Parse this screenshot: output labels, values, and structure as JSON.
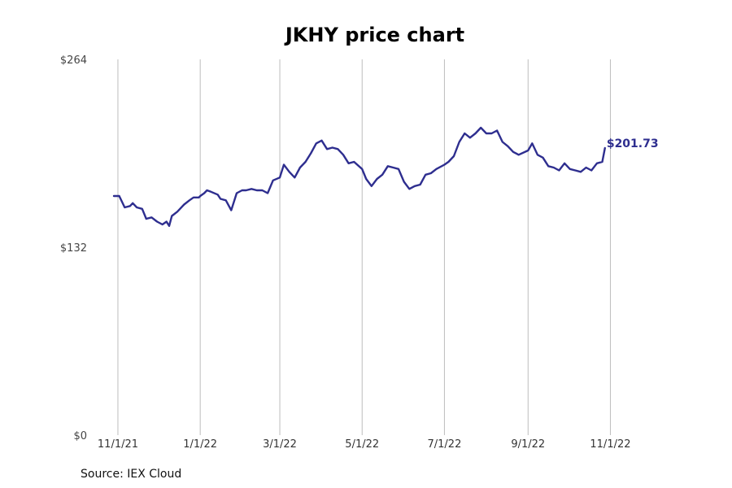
{
  "chart_data": {
    "type": "line",
    "title": "JKHY price chart",
    "source": "Source: IEX Cloud",
    "xlabel": "",
    "ylabel": "",
    "y_ticks": [
      "$264",
      "$132",
      "$0"
    ],
    "y_tick_values": [
      264,
      132,
      0
    ],
    "ylim": [
      0,
      264
    ],
    "x_ticks": [
      "11/1/21",
      "1/1/22",
      "3/1/22",
      "5/1/22",
      "7/1/22",
      "9/1/22",
      "11/1/22"
    ],
    "x_tick_dates": [
      "2021-11-01",
      "2022-01-01",
      "2022-03-01",
      "2022-05-01",
      "2022-07-01",
      "2022-09-01",
      "2022-11-01"
    ],
    "xlim": [
      "2021-10-29",
      "2022-12-31"
    ],
    "grid": "vertical",
    "color": "#2e2e8f",
    "last_value_label": "$201.73",
    "series": [
      {
        "x": [
          "2021-10-29",
          "2021-11-02",
          "2021-11-06",
          "2021-11-10",
          "2021-11-12",
          "2021-11-15",
          "2021-11-19",
          "2021-11-22",
          "2021-11-26",
          "2021-11-30",
          "2021-12-04",
          "2021-12-07",
          "2021-12-09",
          "2021-12-11",
          "2021-12-15",
          "2021-12-20",
          "2021-12-24",
          "2021-12-27",
          "2021-12-31",
          "2022-01-01",
          "2022-01-04",
          "2022-01-06",
          "2022-01-09",
          "2022-01-14",
          "2022-01-16",
          "2022-01-20",
          "2022-01-24",
          "2022-01-28",
          "2022-02-01",
          "2022-02-04",
          "2022-02-08",
          "2022-02-12",
          "2022-02-16",
          "2022-02-20",
          "2022-02-24",
          "2022-03-01",
          "2022-03-04",
          "2022-03-08",
          "2022-03-12",
          "2022-03-16",
          "2022-03-20",
          "2022-03-24",
          "2022-03-28",
          "2022-04-01",
          "2022-04-05",
          "2022-04-09",
          "2022-04-13",
          "2022-04-17",
          "2022-04-21",
          "2022-04-25",
          "2022-05-01",
          "2022-05-04",
          "2022-05-08",
          "2022-05-12",
          "2022-05-16",
          "2022-05-20",
          "2022-05-24",
          "2022-05-28",
          "2022-06-01",
          "2022-06-05",
          "2022-06-09",
          "2022-06-13",
          "2022-06-17",
          "2022-06-21",
          "2022-06-25",
          "2022-07-01",
          "2022-07-04",
          "2022-07-08",
          "2022-07-12",
          "2022-07-16",
          "2022-07-20",
          "2022-07-24",
          "2022-07-28",
          "2022-08-01",
          "2022-08-05",
          "2022-08-09",
          "2022-08-13",
          "2022-08-17",
          "2022-08-21",
          "2022-08-25",
          "2022-09-01",
          "2022-09-04",
          "2022-09-08",
          "2022-09-12",
          "2022-09-16",
          "2022-09-20",
          "2022-09-24",
          "2022-09-28",
          "2022-10-02",
          "2022-10-06",
          "2022-10-10",
          "2022-10-14",
          "2022-10-18",
          "2022-10-22",
          "2022-10-26",
          "2022-10-28"
        ],
        "y": [
          168,
          168,
          160,
          161,
          163,
          160,
          159,
          152,
          153,
          150,
          148,
          150,
          147,
          154,
          157,
          162,
          165,
          167,
          167,
          168,
          170,
          172,
          171,
          169,
          166,
          165,
          158,
          170,
          172,
          172,
          173,
          172,
          172,
          170,
          179,
          181,
          190,
          185,
          181,
          188,
          192,
          198,
          205,
          207,
          201,
          202,
          201,
          197,
          191,
          192,
          187,
          180,
          175,
          180,
          183,
          189,
          188,
          187,
          178,
          173,
          175,
          176,
          183,
          184,
          187,
          190,
          192,
          196,
          206,
          212,
          209,
          212,
          216,
          212,
          212,
          214,
          206,
          203,
          199,
          197,
          200,
          205,
          197,
          195,
          189,
          188,
          186,
          191,
          187,
          186,
          185,
          188,
          186,
          191,
          192,
          201.73
        ]
      }
    ]
  }
}
